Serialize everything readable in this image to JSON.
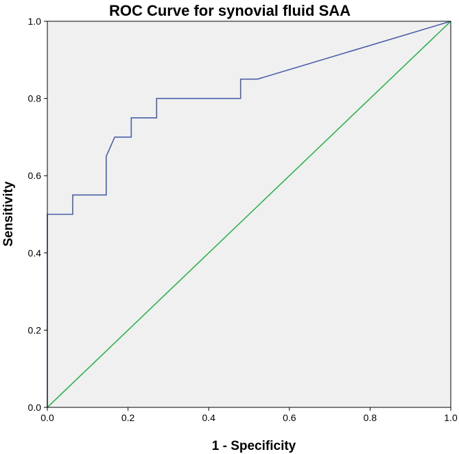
{
  "chart_data": {
    "type": "line",
    "title": "ROC Curve for synovial fluid SAA",
    "xlabel": "1 - Specificity",
    "ylabel": "Sensitivity",
    "xlim": [
      0.0,
      1.0
    ],
    "ylim": [
      0.0,
      1.0
    ],
    "x_ticks": [
      "0.0",
      "0.2",
      "0.4",
      "0.6",
      "0.8",
      "1.0"
    ],
    "y_ticks": [
      "0.0",
      "0.2",
      "0.4",
      "0.6",
      "0.8",
      "1.0"
    ],
    "grid": false,
    "series": [
      {
        "color": "#4a5ea8",
        "points": [
          [
            0.0,
            0.0
          ],
          [
            0.0,
            0.5
          ],
          [
            0.063,
            0.5
          ],
          [
            0.063,
            0.55
          ],
          [
            0.146,
            0.55
          ],
          [
            0.146,
            0.65
          ],
          [
            0.167,
            0.7
          ],
          [
            0.208,
            0.7
          ],
          [
            0.208,
            0.75
          ],
          [
            0.271,
            0.75
          ],
          [
            0.271,
            0.8
          ],
          [
            0.479,
            0.8
          ],
          [
            0.479,
            0.85
          ],
          [
            0.521,
            0.85
          ],
          [
            1.0,
            1.0
          ]
        ]
      },
      {
        "color": "#2db34a",
        "points": [
          [
            0.0,
            0.0
          ],
          [
            1.0,
            1.0
          ]
        ]
      }
    ],
    "plot_background": "#f0f0f0"
  }
}
